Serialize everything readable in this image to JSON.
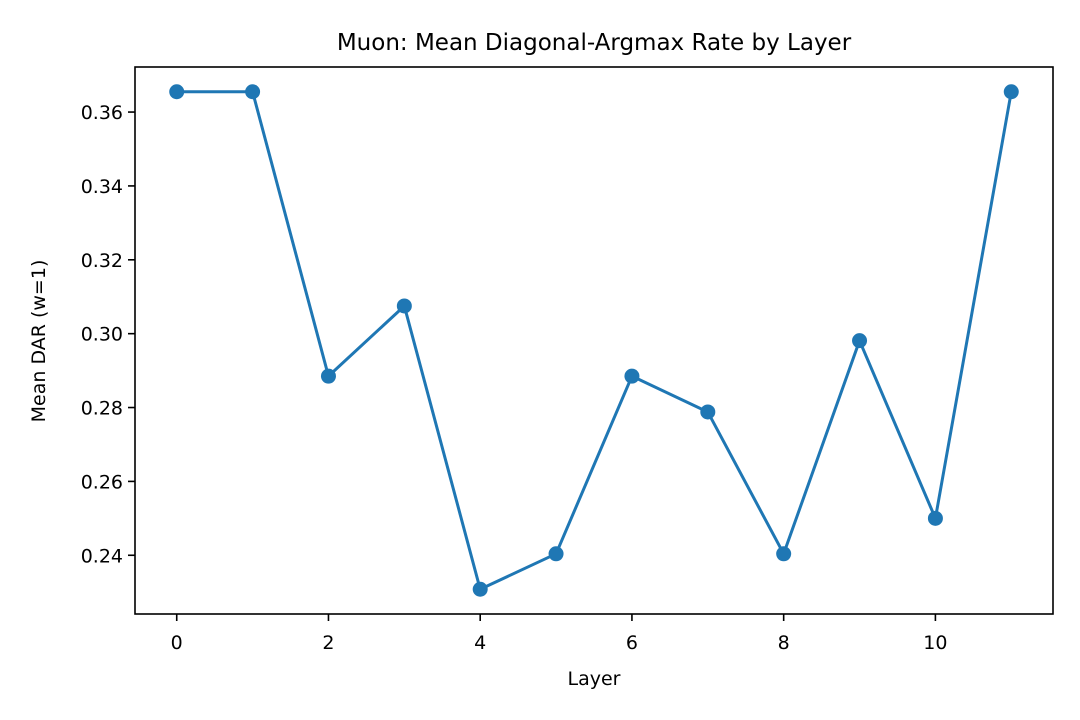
{
  "chart_data": {
    "type": "line",
    "title": "Muon: Mean Diagonal-Argmax Rate by Layer",
    "xlabel": "Layer",
    "ylabel": "Mean DAR (w=1)",
    "x": [
      0,
      1,
      2,
      3,
      4,
      5,
      6,
      7,
      8,
      9,
      10,
      11
    ],
    "series": [
      {
        "values": [
          0.3655,
          0.3655,
          0.2885,
          0.3075,
          0.2308,
          0.2404,
          0.2885,
          0.2788,
          0.2404,
          0.2981,
          0.25,
          0.3655
        ],
        "color": "#1f77b4",
        "marker": "circle"
      }
    ],
    "xlim": [
      -0.55,
      11.55
    ],
    "ylim": [
      0.2241,
      0.3722
    ],
    "xticks": [
      0,
      2,
      4,
      6,
      8,
      10
    ],
    "xtick_labels": [
      "0",
      "2",
      "4",
      "6",
      "8",
      "10"
    ],
    "yticks": [
      0.24,
      0.26,
      0.28,
      0.3,
      0.32,
      0.34,
      0.36
    ],
    "ytick_labels": [
      "0.24",
      "0.26",
      "0.28",
      "0.30",
      "0.32",
      "0.34",
      "0.36"
    ],
    "grid": false,
    "legend": "none"
  }
}
